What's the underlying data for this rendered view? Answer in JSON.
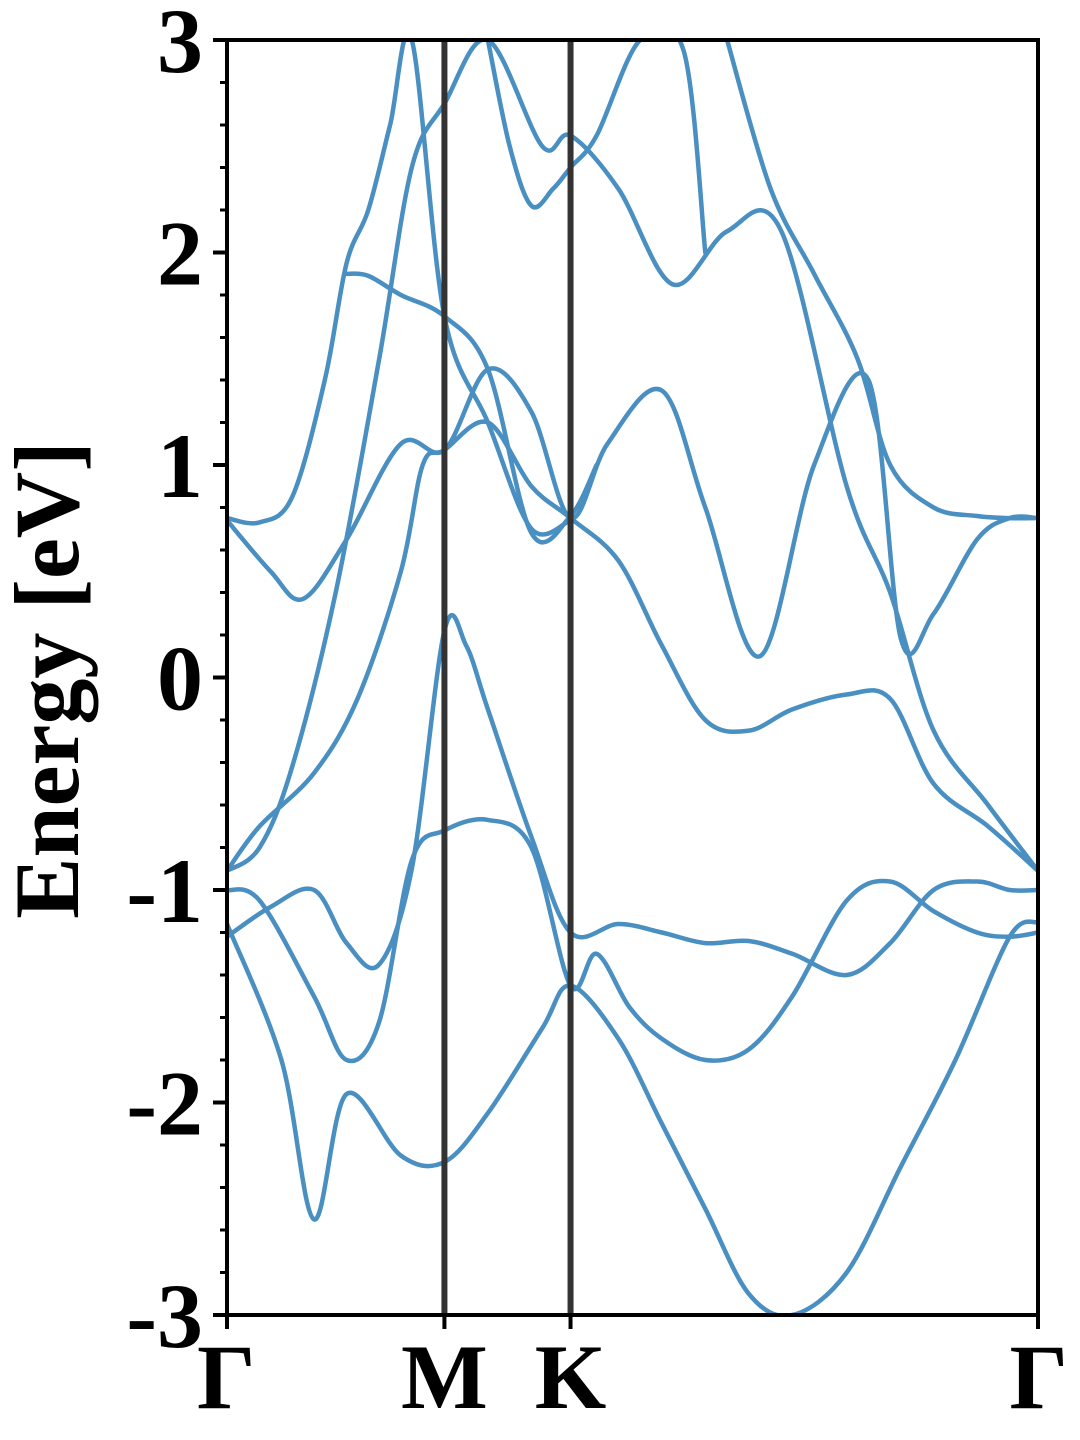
{
  "chart_data": {
    "type": "line",
    "title": "",
    "xlabel": "",
    "ylabel": "Energy [eV]",
    "ylim": [
      -3,
      3
    ],
    "xlim": [
      0,
      3.73
    ],
    "grid": false,
    "line_color": "#4a8fc1",
    "divider_color": "#333333",
    "k_points": [
      {
        "label": "Γ",
        "x": 0
      },
      {
        "label": "M",
        "x": 1.0
      },
      {
        "label": "K",
        "x": 1.58
      },
      {
        "label": "Γ",
        "x": 3.73
      }
    ],
    "y_ticks": [
      {
        "value": 3,
        "label": "3"
      },
      {
        "value": 2,
        "label": "2"
      },
      {
        "value": 1,
        "label": "1"
      },
      {
        "value": 0,
        "label": "0"
      },
      {
        "value": -1,
        "label": "-1"
      },
      {
        "value": -2,
        "label": "-2"
      },
      {
        "value": -3,
        "label": "-3"
      }
    ],
    "series": [
      {
        "x": [
          0,
          0.25,
          0.4,
          0.55,
          0.8,
          1.0,
          1.2,
          1.45,
          1.58,
          1.8,
          2.0,
          2.2,
          2.4,
          2.6,
          2.85,
          3.1,
          3.35,
          3.6,
          3.73
        ],
        "y": [
          -1.16,
          -1.8,
          -2.55,
          -1.96,
          -2.25,
          -2.28,
          -2.05,
          -1.65,
          -1.45,
          -1.7,
          -2.1,
          -2.5,
          -2.9,
          -3.0,
          -2.8,
          -2.3,
          -1.8,
          -1.22,
          -1.15
        ]
      },
      {
        "x": [
          0,
          0.15,
          0.4,
          0.55,
          0.7,
          0.85,
          1.0,
          1.2,
          1.4,
          1.58,
          1.7,
          1.85,
          2.0,
          2.2,
          2.4,
          2.6,
          2.85,
          3.05,
          3.25,
          3.45,
          3.6,
          3.73
        ],
        "y": [
          -1.0,
          -1.05,
          -1.5,
          -1.8,
          -1.62,
          -0.86,
          -0.72,
          -0.67,
          -0.8,
          -1.45,
          -1.3,
          -1.55,
          -1.7,
          -1.8,
          -1.75,
          -1.5,
          -1.05,
          -0.96,
          -1.1,
          -1.2,
          -1.22,
          -1.2
        ]
      },
      {
        "x": [
          0,
          0.2,
          0.4,
          0.55,
          0.7,
          0.85,
          1.0,
          1.1,
          1.2,
          1.4,
          1.58,
          1.8,
          2.0,
          2.2,
          2.4,
          2.6,
          2.85,
          3.05,
          3.25,
          3.45,
          3.6,
          3.73
        ],
        "y": [
          -1.22,
          -1.08,
          -1.0,
          -1.25,
          -1.35,
          -0.9,
          0.22,
          0.15,
          -0.15,
          -0.75,
          -1.2,
          -1.16,
          -1.2,
          -1.25,
          -1.24,
          -1.3,
          -1.4,
          -1.25,
          -1.0,
          -0.96,
          -1.0,
          -1.0
        ]
      },
      {
        "x": [
          0,
          0.15,
          0.4,
          0.6,
          0.8,
          0.9,
          1.0,
          1.2,
          1.4,
          1.58,
          1.8,
          2.0,
          2.2,
          2.4,
          2.6,
          2.85,
          3.05,
          3.25,
          3.5,
          3.73
        ],
        "y": [
          -0.91,
          -0.7,
          -0.45,
          -0.1,
          0.5,
          1.0,
          1.07,
          1.2,
          0.9,
          0.75,
          0.55,
          0.15,
          -0.2,
          -0.25,
          -0.15,
          -0.08,
          -0.1,
          -0.5,
          -0.7,
          -0.91
        ]
      },
      {
        "x": [
          0,
          0.15,
          0.3,
          0.5,
          0.7,
          0.85,
          1.0,
          1.2,
          1.45,
          1.58,
          1.8,
          2.05,
          2.3,
          2.55,
          2.85,
          3.05,
          3.25,
          3.5,
          3.73
        ],
        "y": [
          -0.91,
          -0.8,
          -0.42,
          0.4,
          1.5,
          2.4,
          2.7,
          3.0,
          2.5,
          2.55,
          2.3,
          1.85,
          2.1,
          2.1,
          0.9,
          0.4,
          -0.25,
          -0.6,
          -0.91
        ]
      },
      {
        "x": [
          0,
          0.2,
          0.35,
          0.55,
          0.8,
          1.0,
          1.2,
          1.4,
          1.58,
          1.75,
          2.0,
          2.2,
          2.45,
          2.7,
          2.95,
          3.1,
          3.25,
          3.45,
          3.6,
          3.73
        ],
        "y": [
          0.74,
          0.5,
          0.37,
          0.65,
          1.1,
          1.07,
          1.45,
          1.25,
          0.75,
          1.1,
          1.35,
          0.8,
          0.1,
          1.0,
          1.4,
          0.18,
          0.3,
          0.65,
          0.75,
          0.75
        ]
      },
      {
        "x": [
          0,
          0.15,
          0.3,
          0.45,
          0.55,
          0.65,
          0.75,
          0.85,
          1.0,
          1.2,
          1.4,
          1.58
        ],
        "y": [
          0.75,
          0.73,
          0.85,
          1.4,
          1.95,
          2.2,
          2.6,
          3.0,
          1.7,
          1.2,
          0.7,
          0.74
        ]
      },
      {
        "x": [
          0.55,
          0.65,
          0.8,
          1.0,
          1.2,
          1.4,
          1.58,
          1.7
        ],
        "y": [
          1.9,
          1.89,
          1.8,
          1.7,
          1.45,
          0.68,
          0.76,
          1.0
        ]
      },
      {
        "x": [
          1.2,
          1.3,
          1.4,
          1.5,
          1.58,
          1.7,
          1.9,
          2.1,
          2.2
        ],
        "y": [
          3.0,
          2.5,
          2.22,
          2.3,
          2.4,
          2.55,
          3.0,
          2.95,
          2.0
        ]
      },
      {
        "x": [
          2.3,
          2.5,
          2.7,
          2.9,
          3.05,
          3.25,
          3.45,
          3.6,
          3.73
        ],
        "y": [
          3.0,
          2.3,
          1.9,
          1.5,
          1.0,
          0.8,
          0.76,
          0.75,
          0.75
        ]
      }
    ]
  }
}
